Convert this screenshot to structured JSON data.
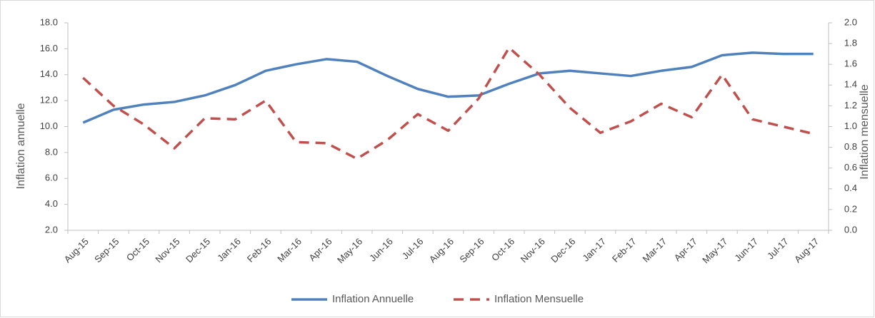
{
  "chart_data": {
    "type": "line",
    "categories": [
      "Aug-15",
      "Sep-15",
      "Oct-15",
      "Nov-15",
      "Dec-15",
      "Jan-16",
      "Feb-16",
      "Mar-16",
      "Apr-16",
      "May-16",
      "Jun-16",
      "Jul-16",
      "Aug-16",
      "Sep-16",
      "Oct-16",
      "Nov-16",
      "Dec-16",
      "Jan-17",
      "Feb-17",
      "Mar-17",
      "Apr-17",
      "May-17",
      "Jun-17",
      "Jul-17",
      "Aug-17"
    ],
    "series": [
      {
        "name": "Inflation Annuelle",
        "color": "#4f81bd",
        "values": [
          10.3,
          11.3,
          11.7,
          11.9,
          12.4,
          13.2,
          14.3,
          14.8,
          15.2,
          15.0,
          13.9,
          12.9,
          12.3,
          12.4,
          13.3,
          14.1,
          14.3,
          14.1,
          13.9,
          14.3,
          14.6,
          15.5,
          15.7,
          15.6,
          15.6
        ]
      },
      {
        "name": "Inflation Mensuelle",
        "color": "#c0504d",
        "axis": "y2",
        "dashed": true,
        "values": [
          1.47,
          1.2,
          1.02,
          0.79,
          1.08,
          1.07,
          1.25,
          0.85,
          0.84,
          0.69,
          0.87,
          1.12,
          0.96,
          1.27,
          1.76,
          1.5,
          1.18,
          0.94,
          1.05,
          1.22,
          1.09,
          1.5,
          1.07,
          1.0,
          0.93
        ]
      }
    ],
    "ylabel": "Inflation annuelle",
    "y2label": "Inflation mensuelle",
    "ylim": [
      2,
      18
    ],
    "yticks": [
      {
        "value": 2,
        "label": "2.0"
      },
      {
        "value": 4,
        "label": "4.0"
      },
      {
        "value": 6,
        "label": "6.0"
      },
      {
        "value": 8,
        "label": "8.0"
      },
      {
        "value": 10,
        "label": "10.0"
      },
      {
        "value": 12,
        "label": "12.0"
      },
      {
        "value": 14,
        "label": "14.0"
      },
      {
        "value": 16,
        "label": "16.0"
      },
      {
        "value": 18,
        "label": "18.0"
      }
    ],
    "y2lim": [
      0,
      2
    ],
    "y2ticks": [
      {
        "value": 0,
        "label": "0.0"
      },
      {
        "value": 0.2,
        "label": "0.2"
      },
      {
        "value": 0.4,
        "label": "0.4"
      },
      {
        "value": 0.6,
        "label": "0.6"
      },
      {
        "value": 0.8,
        "label": "0.8"
      },
      {
        "value": 1,
        "label": "1.0"
      },
      {
        "value": 1.2,
        "label": "1.2"
      },
      {
        "value": 1.4,
        "label": "1.4"
      },
      {
        "value": 1.6,
        "label": "1.6"
      },
      {
        "value": 1.8,
        "label": "1.8"
      },
      {
        "value": 2,
        "label": "2.0"
      }
    ],
    "legend": "bottom"
  }
}
